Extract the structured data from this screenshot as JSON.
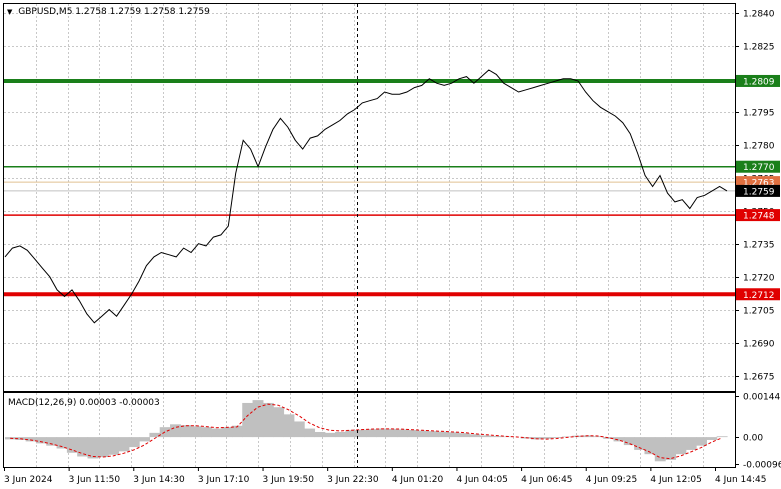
{
  "chart_data": {
    "type": "line",
    "title": "GBPUSD,M5  1.2758 1.2759 1.2758 1.2759",
    "y_range": [
      1.2668,
      1.2844
    ],
    "y_ticks": [
      "1.2840",
      "1.2825",
      "1.2810",
      "1.2795",
      "1.2780",
      "1.2765",
      "1.2750",
      "1.2735",
      "1.2720",
      "1.2705",
      "1.2690",
      "1.2675"
    ],
    "x_tick_labels": [
      "3 Jun 2024",
      "3 Jun 11:50",
      "3 Jun 14:30",
      "3 Jun 17:10",
      "3 Jun 19:50",
      "3 Jun 22:30",
      "4 Jun 01:20",
      "4 Jun 04:05",
      "4 Jun 06:45",
      "4 Jun 09:25",
      "4 Jun 12:05",
      "4 Jun 14:45"
    ],
    "grid": true,
    "levels": [
      {
        "value": 1.2809,
        "label": "1.2809",
        "color": "#1a7f1a",
        "weight": "thick"
      },
      {
        "value": 1.277,
        "label": "1.2770",
        "color": "#1a7f1a",
        "weight": "thin"
      },
      {
        "value": 1.2748,
        "label": "1.2748",
        "color": "#e00000",
        "weight": "thin"
      },
      {
        "value": 1.2712,
        "label": "1.2712",
        "color": "#e00000",
        "weight": "thick"
      }
    ],
    "current_price": {
      "value": 1.2759,
      "label": "1.2759"
    },
    "hidden_price_label": {
      "value": 1.2763,
      "label": "1.2763"
    },
    "price_series": [
      1.2729,
      1.2733,
      1.2734,
      1.2732,
      1.2728,
      1.2724,
      1.272,
      1.2714,
      1.2711,
      1.2714,
      1.2709,
      1.2703,
      1.2699,
      1.2702,
      1.2705,
      1.2702,
      1.2707,
      1.2712,
      1.2718,
      1.2725,
      1.2729,
      1.2731,
      1.273,
      1.2729,
      1.2733,
      1.2731,
      1.2735,
      1.2734,
      1.2738,
      1.2739,
      1.2743,
      1.2767,
      1.2782,
      1.2778,
      1.277,
      1.2779,
      1.2787,
      1.2792,
      1.2788,
      1.2782,
      1.2778,
      1.2783,
      1.2784,
      1.2787,
      1.2789,
      1.2791,
      1.2794,
      1.2796,
      1.2799,
      1.28,
      1.2801,
      1.2804,
      1.2803,
      1.2803,
      1.2804,
      1.2806,
      1.2807,
      1.281,
      1.2808,
      1.2807,
      1.2808,
      1.281,
      1.2811,
      1.2808,
      1.2811,
      1.2814,
      1.2812,
      1.2808,
      1.2806,
      1.2804,
      1.2805,
      1.2806,
      1.2807,
      1.2808,
      1.2809,
      1.281,
      1.281,
      1.2809,
      1.2804,
      1.28,
      1.2797,
      1.2795,
      1.2793,
      1.279,
      1.2785,
      1.2776,
      1.2766,
      1.2761,
      1.2766,
      1.2758,
      1.2754,
      1.2755,
      1.2751,
      1.2756,
      1.2757,
      1.2759,
      1.2761,
      1.2759
    ],
    "macd": {
      "label": "MACD(12,26,9) 0.00003 -0.00003",
      "y_range": [
        -0.00105,
        0.00155
      ],
      "y_ticks": [
        "0.00144",
        "0.00",
        "-0.00096"
      ],
      "histogram": [
        -8e-05,
        -0.0001,
        -0.00015,
        -0.00022,
        -0.0003,
        -0.0004,
        -0.00055,
        -0.00068,
        -0.00075,
        -0.0007,
        -0.00062,
        -0.0005,
        -0.00035,
        -0.00015,
        0.00015,
        0.00035,
        0.00045,
        0.00042,
        0.00038,
        0.00035,
        0.0003,
        0.00035,
        0.0004,
        0.0012,
        0.0013,
        0.0012,
        0.00105,
        0.0008,
        0.00055,
        0.0003,
        0.00018,
        0.00015,
        0.00018,
        0.00024,
        0.00026,
        0.00028,
        0.0003,
        0.00029,
        0.00027,
        0.00025,
        0.00023,
        0.00021,
        0.00019,
        0.00017,
        0.00014,
        0.0001,
        6e-05,
        4e-05,
        2e-05,
        0.0,
        -5e-05,
        -8e-05,
        -6e-05,
        -3e-05,
        2e-05,
        5e-05,
        6e-05,
        3e-05,
        -6e-05,
        -0.00015,
        -0.00028,
        -0.00045,
        -0.0006,
        -0.00085,
        -0.0008,
        -0.0006,
        -0.00045,
        -0.0003,
        -0.0001,
        3e-05
      ],
      "signal": [
        -4e-05,
        -6e-05,
        -0.0001,
        -0.00016,
        -0.00024,
        -0.00033,
        -0.00045,
        -0.00058,
        -0.00068,
        -0.0007,
        -0.00066,
        -0.00057,
        -0.00045,
        -0.00028,
        -5e-05,
        0.00018,
        0.00034,
        0.0004,
        0.0004,
        0.00037,
        0.00033,
        0.00034,
        0.00036,
        0.00075,
        0.00105,
        0.00116,
        0.00112,
        0.00096,
        0.00075,
        0.0005,
        0.00033,
        0.00024,
        0.00022,
        0.00024,
        0.00026,
        0.00028,
        0.00029,
        0.00029,
        0.00028,
        0.00026,
        0.00024,
        0.00022,
        0.0002,
        0.00018,
        0.00016,
        0.00012,
        9e-05,
        6e-05,
        3e-05,
        1e-05,
        -2e-05,
        -6e-05,
        -7e-05,
        -5e-05,
        -1e-05,
        3e-05,
        5e-05,
        4e-05,
        -2e-05,
        -0.0001,
        -0.00022,
        -0.00037,
        -0.00052,
        -0.00072,
        -0.00076,
        -0.00066,
        -0.00052,
        -0.00037,
        -0.00018,
        -3e-05
      ]
    }
  },
  "colors": {
    "background": "#ffffff",
    "grid": "#c8c8c8",
    "price_line": "#000000",
    "macd_hist": "#c0c0c0",
    "signal": "#e00000",
    "current_badge": "#000000",
    "hidden_badge": "#e07040"
  }
}
